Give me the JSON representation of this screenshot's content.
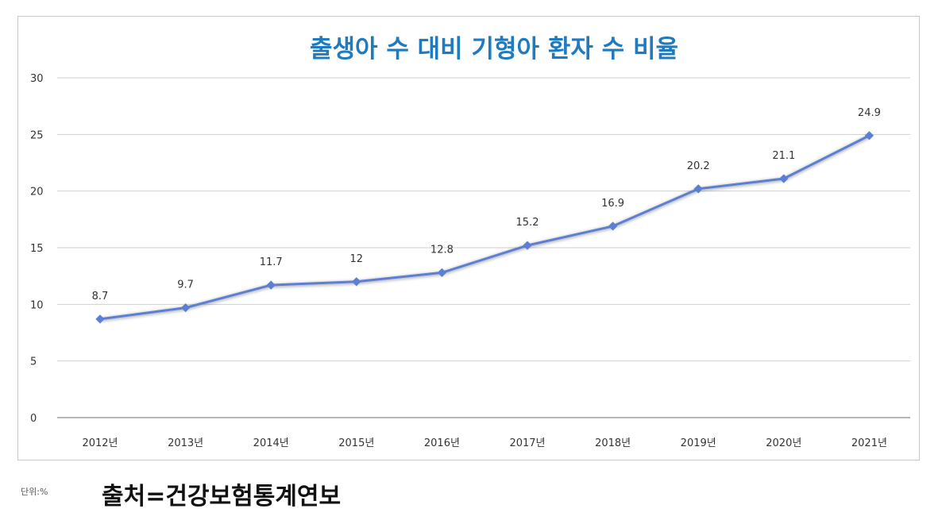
{
  "chart_data": {
    "type": "line",
    "title": "출생아 수 대비 기형아 환자 수 비율",
    "categories": [
      "2012년",
      "2013년",
      "2014년",
      "2015년",
      "2016년",
      "2017년",
      "2018년",
      "2019년",
      "2020년",
      "2021년"
    ],
    "values": [
      8.7,
      9.7,
      11.7,
      12,
      12.8,
      15.2,
      16.9,
      20.2,
      21.1,
      24.9
    ],
    "value_labels": [
      "8.7",
      "9.7",
      "11.7",
      "12",
      "12.8",
      "15.2",
      "16.9",
      "20.2",
      "21.1",
      "24.9"
    ],
    "y_ticks": [
      "0",
      "5",
      "10",
      "15",
      "20",
      "25",
      "30"
    ],
    "ylim": [
      0,
      30
    ],
    "grid": true,
    "line_color": "#5b7fd3"
  },
  "notes": {
    "unit": "단위:%",
    "source": "출처=건강보험통계연보"
  }
}
